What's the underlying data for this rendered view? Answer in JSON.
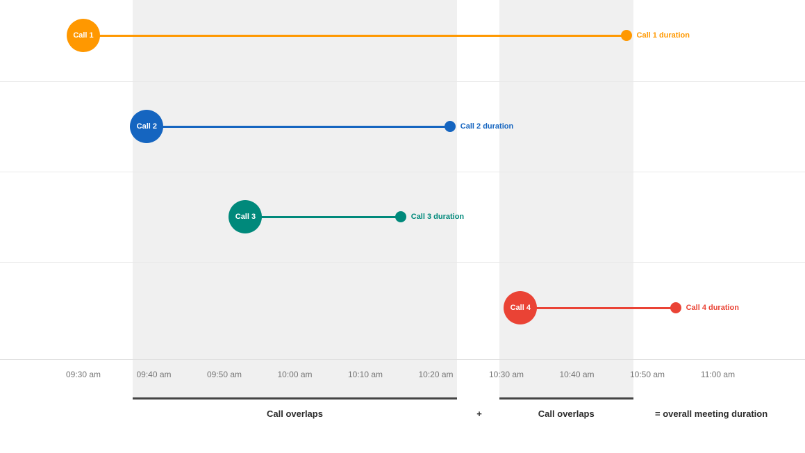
{
  "chart_data": {
    "type": "timeline",
    "title": "",
    "x_ticks": [
      "09:30 am",
      "09:40 am",
      "09:50 am",
      "10:00 am",
      "10:10 am",
      "10:20 am",
      "10:30 am",
      "10:40 am",
      "10:50 am",
      "11:00 am"
    ],
    "xlim": [
      "09:30 am",
      "11:00 am"
    ],
    "grid": true,
    "series": [
      {
        "name": "Call 1",
        "duration_label": "Call 1 duration",
        "start": "09:30",
        "end": "10:47",
        "color": "#FF9800"
      },
      {
        "name": "Call 2",
        "duration_label": "Call 2 duration",
        "start": "09:39",
        "end": "10:22",
        "color": "#1565C0"
      },
      {
        "name": "Call 3",
        "duration_label": "Call 3 duration",
        "start": "09:53",
        "end": "10:15",
        "color": "#00897B"
      },
      {
        "name": "Call 4",
        "duration_label": "Call 4 duration",
        "start": "10:32",
        "end": "10:54",
        "color": "#EA4335"
      }
    ],
    "overlap_regions": [
      {
        "start": "09:37",
        "end": "10:23",
        "label": "Call overlaps",
        "fill": "#f0f0f0"
      },
      {
        "start": "10:29",
        "end": "10:48",
        "label": "Call overlaps",
        "fill": "#f0f0f0"
      }
    ],
    "footer": {
      "plus": "+",
      "equals": "= overall meeting duration"
    }
  }
}
